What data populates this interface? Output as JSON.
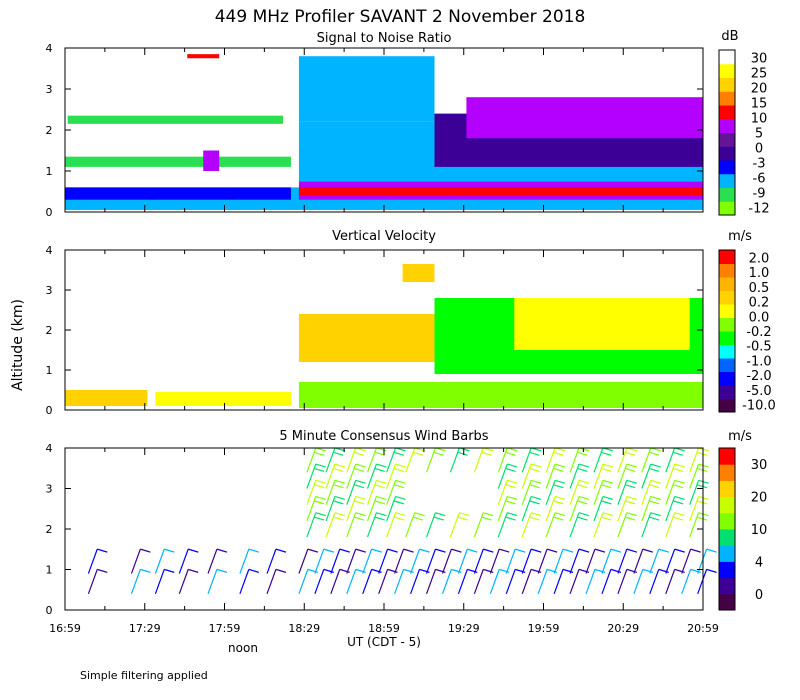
{
  "title": "449 MHz Profiler SAVANT  2 November 2018",
  "ylabel": "Altitude (km)",
  "xaxis": {
    "ticks": [
      "16:59",
      "17:29",
      "17:59",
      "18:29",
      "18:59",
      "19:29",
      "19:59",
      "20:29",
      "20:59"
    ],
    "label": "UT (CDT - 5)",
    "noon_label": "noon"
  },
  "footnote": "Simple filtering applied",
  "colors": {
    "snr": [
      "#7fff00",
      "#28e050",
      "#00b4ff",
      "#0000ff",
      "#3c0096",
      "#641496",
      "#b400ff",
      "#ff0000",
      "#ff7f00",
      "#ffd200",
      "#ffff00",
      "#ffffff"
    ],
    "vel": [
      "#460046",
      "#3c0096",
      "#0000ff",
      "#0064ff",
      "#00ffff",
      "#00ff00",
      "#7fff00",
      "#ffff00",
      "#ffd200",
      "#ffb400",
      "#ff7f00",
      "#ff0000"
    ],
    "wind": [
      "#460046",
      "#3c0096",
      "#0000ff",
      "#00b4ff",
      "#00e06e",
      "#7fff00",
      "#c8ff00",
      "#ffd200",
      "#ff7f00",
      "#ff0000"
    ]
  },
  "chart_data": [
    {
      "type": "heatmap",
      "title": "Signal to Noise Ratio",
      "units": "dB",
      "colorbar_labels": [
        "30",
        "25",
        "20",
        "15",
        "10",
        "5",
        "0",
        "-3",
        "-6",
        "-9",
        "-12"
      ],
      "ylim": [
        0,
        4
      ],
      "y_ticks": [
        "0",
        "1",
        "2",
        "3",
        "4"
      ],
      "layers": [
        {
          "t0": 16.98,
          "t1": 20.98,
          "h0": 0.05,
          "h1": 0.6,
          "level": "-9"
        },
        {
          "t0": 18.45,
          "t1": 20.98,
          "h0": 0.3,
          "h1": 0.75,
          "level": "5"
        },
        {
          "t0": 18.45,
          "t1": 20.98,
          "h0": 0.4,
          "h1": 0.6,
          "level": "10"
        },
        {
          "t0": 16.98,
          "t1": 18.4,
          "h0": 0.3,
          "h1": 0.6,
          "level": "-6"
        },
        {
          "t0": 18.45,
          "t1": 20.98,
          "h0": 0.75,
          "h1": 2.2,
          "level": "-9"
        },
        {
          "t0": 19.3,
          "t1": 20.98,
          "h0": 1.1,
          "h1": 2.4,
          "level": "-3"
        },
        {
          "t0": 19.5,
          "t1": 20.98,
          "h0": 1.8,
          "h1": 2.8,
          "level": "5"
        },
        {
          "t0": 16.98,
          "t1": 18.4,
          "h0": 1.1,
          "h1": 1.35,
          "level": "-12"
        },
        {
          "t0": 17.0,
          "t1": 18.35,
          "h0": 2.15,
          "h1": 2.35,
          "level": "-12"
        },
        {
          "t0": 18.45,
          "t1": 19.3,
          "h0": 2.2,
          "h1": 3.8,
          "level": "-9"
        },
        {
          "t0": 17.85,
          "t1": 17.95,
          "h0": 1.0,
          "h1": 1.5,
          "level": "5"
        },
        {
          "t0": 17.75,
          "t1": 17.95,
          "h0": 3.75,
          "h1": 3.85,
          "level": "10"
        }
      ]
    },
    {
      "type": "heatmap",
      "title": "Vertical Velocity",
      "units": "m/s",
      "colorbar_labels": [
        "2.0",
        "1.0",
        "0.5",
        "0.2",
        "0.0",
        "-0.2",
        "-0.5",
        "-1.0",
        "-2.0",
        "-5.0",
        "-10.0"
      ],
      "ylim": [
        0,
        4
      ],
      "y_ticks": [
        "0",
        "1",
        "2",
        "3",
        "4"
      ],
      "layers": [
        {
          "t0": 16.98,
          "t1": 17.5,
          "h0": 0.1,
          "h1": 0.5,
          "level": "0.2"
        },
        {
          "t0": 17.55,
          "t1": 18.4,
          "h0": 0.1,
          "h1": 0.45,
          "level": "0.0"
        },
        {
          "t0": 18.45,
          "t1": 20.98,
          "h0": 0.05,
          "h1": 0.7,
          "level": "-0.2"
        },
        {
          "t0": 18.45,
          "t1": 19.4,
          "h0": 1.2,
          "h1": 2.4,
          "level": "0.2"
        },
        {
          "t0": 19.3,
          "t1": 20.98,
          "h0": 0.9,
          "h1": 2.8,
          "level": "-0.5"
        },
        {
          "t0": 19.8,
          "t1": 20.9,
          "h0": 1.5,
          "h1": 2.8,
          "level": "0.0"
        },
        {
          "t0": 19.1,
          "t1": 19.3,
          "h0": 3.2,
          "h1": 3.65,
          "level": "0.2"
        }
      ]
    },
    {
      "type": "scatter",
      "title": "5 Minute Consensus Wind Barbs",
      "units": "m/s",
      "colorbar_labels": [
        "30",
        "20",
        "10",
        "4",
        "0"
      ],
      "ylim": [
        0,
        4
      ],
      "y_ticks": [
        "0",
        "1",
        "2",
        "3",
        "4"
      ],
      "x_range_hours": [
        16.9833,
        20.9833
      ],
      "heights_km": [
        0.4,
        0.9
      ],
      "upper_heights_km": [
        1.8,
        2.2,
        2.6,
        3.0,
        3.4
      ],
      "speed_lower_m_s": 3,
      "speed_upper_m_s": 12,
      "barb_times_lower": [
        17.13,
        17.4,
        17.55,
        17.7,
        17.88,
        18.08,
        18.25,
        18.45,
        18.55,
        18.65,
        18.75,
        18.85,
        18.95,
        19.05,
        19.15,
        19.25,
        19.35,
        19.45,
        19.55,
        19.65,
        19.75,
        19.85,
        19.95,
        20.05,
        20.15,
        20.25,
        20.35,
        20.45,
        20.55,
        20.65,
        20.75,
        20.85,
        20.95
      ],
      "barb_times_upper": [
        18.5,
        18.62,
        18.75,
        18.88,
        19.0,
        19.12,
        19.25,
        19.4,
        19.55,
        19.7,
        19.85,
        20.0,
        20.15,
        20.3,
        20.45,
        20.6,
        20.75,
        20.9
      ]
    }
  ]
}
